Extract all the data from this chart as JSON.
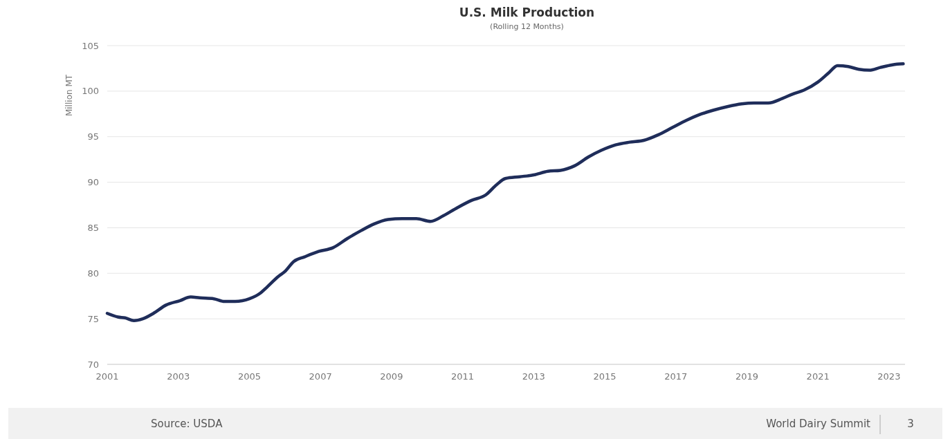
{
  "chart_data": {
    "type": "line",
    "title": "U.S. Milk Production",
    "subtitle": "(Rolling 12 Months)",
    "ylabel": "Million MT",
    "annotations": [
      "Source: USDA",
      "World Dairy Summit",
      "3"
    ],
    "xlim": [
      2001,
      2023.45
    ],
    "xticks": [
      2001,
      2003,
      2005,
      2007,
      2009,
      2011,
      2013,
      2015,
      2017,
      2019,
      2021,
      2023
    ],
    "ylim": [
      70,
      105
    ],
    "yticks": [
      70,
      75,
      80,
      85,
      90,
      95,
      100,
      105
    ],
    "grid": "y",
    "marker": "none",
    "line_style": "solid",
    "series": [
      {
        "color": "#1f2d5a",
        "x": [
          2001.0,
          2001.3,
          2001.5,
          2001.75,
          2002.0,
          2002.3,
          2002.65,
          2003.05,
          2003.35,
          2003.6,
          2004.0,
          2004.3,
          2004.6,
          2005.0,
          2005.3,
          2005.5,
          2005.8,
          2006.0,
          2006.25,
          2006.55,
          2006.95,
          2007.35,
          2007.75,
          2008.15,
          2008.5,
          2008.9,
          2009.3,
          2009.7,
          2010.1,
          2010.45,
          2010.85,
          2011.25,
          2011.65,
          2011.95,
          2012.2,
          2012.6,
          2013.0,
          2013.4,
          2013.75,
          2014.15,
          2014.55,
          2014.9,
          2015.3,
          2015.7,
          2016.1,
          2016.5,
          2016.9,
          2017.3,
          2017.65,
          2018.05,
          2018.45,
          2018.85,
          2019.2,
          2019.6,
          2020.0,
          2020.3,
          2020.6,
          2021.0,
          2021.3,
          2021.55,
          2021.85,
          2022.15,
          2022.45,
          2022.75,
          2023.1,
          2023.4
        ],
        "values": [
          75.6,
          75.2,
          75.1,
          74.8,
          75.0,
          75.6,
          76.5,
          77.0,
          77.4,
          77.3,
          77.2,
          76.9,
          76.9,
          77.2,
          77.8,
          78.5,
          79.6,
          80.2,
          81.3,
          81.8,
          82.4,
          82.8,
          83.8,
          84.7,
          85.4,
          85.9,
          86.0,
          86.0,
          85.7,
          86.3,
          87.2,
          88.0,
          88.6,
          89.7,
          90.4,
          90.6,
          90.8,
          91.2,
          91.3,
          91.8,
          92.8,
          93.5,
          94.1,
          94.4,
          94.6,
          95.2,
          96.0,
          96.8,
          97.4,
          97.9,
          98.3,
          98.6,
          98.7,
          98.7,
          99.2,
          99.7,
          100.1,
          101.0,
          102.0,
          102.8,
          102.7,
          102.4,
          102.3,
          102.6,
          102.9,
          103.0
        ]
      }
    ]
  }
}
